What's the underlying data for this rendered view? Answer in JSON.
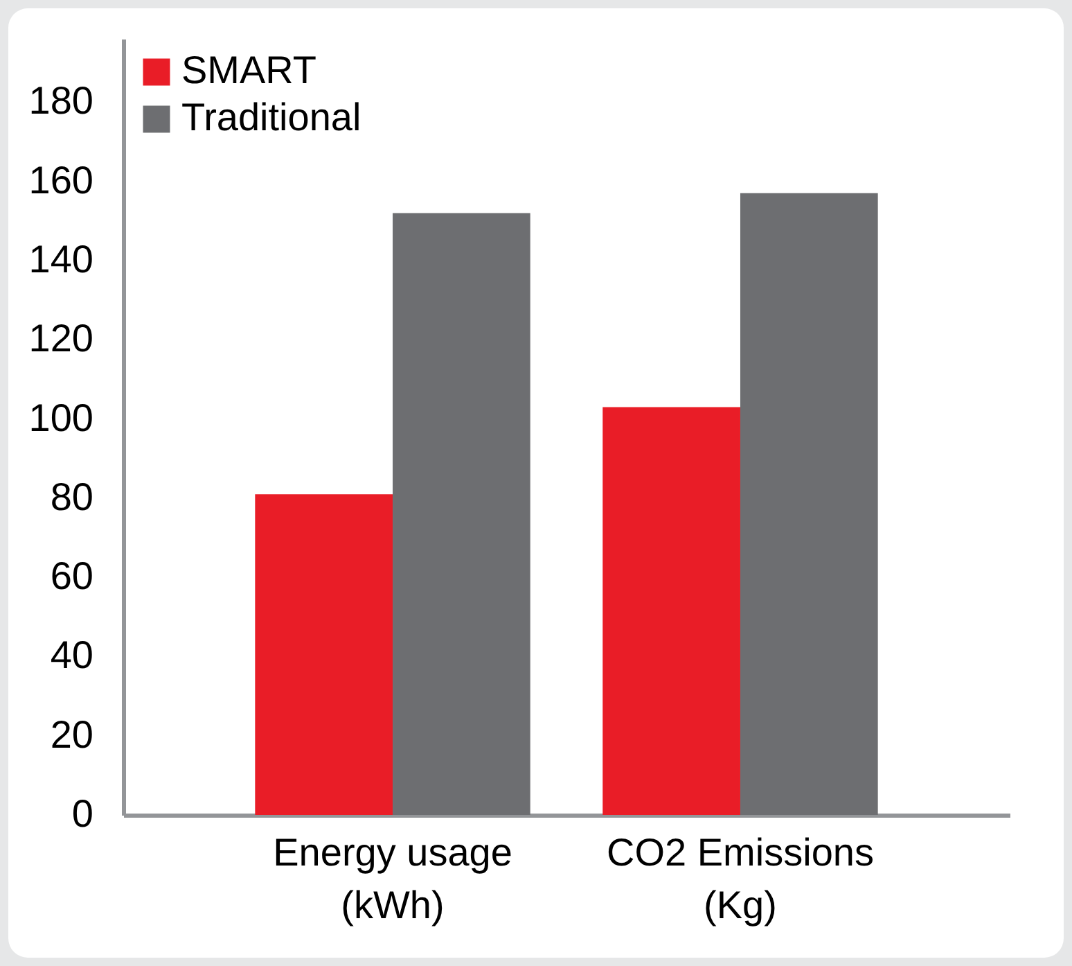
{
  "chart_data": {
    "type": "bar",
    "categories": [
      "Energy usage (kWh)",
      "CO2 Emissions (Kg)"
    ],
    "series": [
      {
        "name": "SMART",
        "color": "#e91d27",
        "values": [
          81,
          103
        ]
      },
      {
        "name": "Traditional",
        "color": "#6d6e71",
        "values": [
          152,
          157
        ]
      }
    ],
    "ylim": [
      0,
      196
    ],
    "yticks": [
      0,
      20,
      40,
      60,
      80,
      100,
      120,
      140,
      160,
      180
    ],
    "grid": false,
    "legend": "top left"
  }
}
